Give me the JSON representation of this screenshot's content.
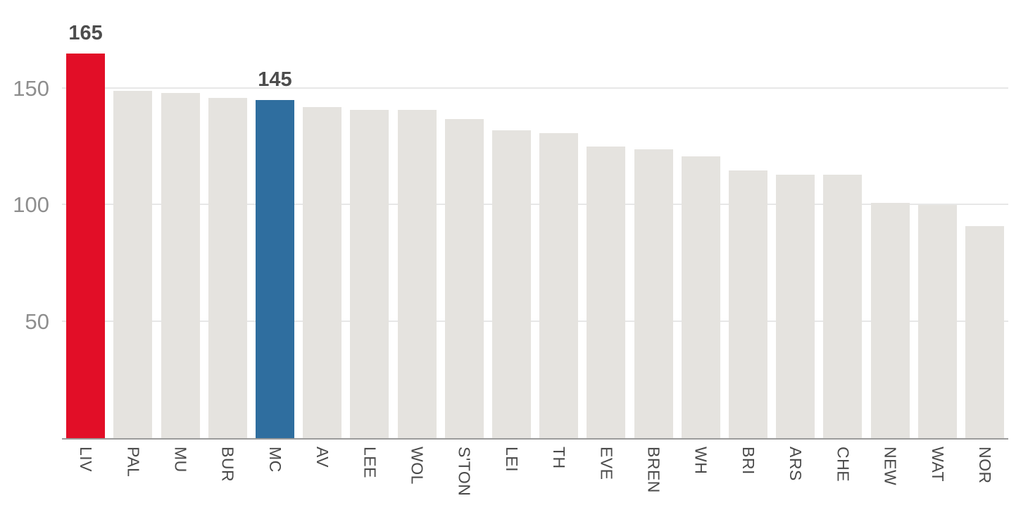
{
  "chart_data": {
    "type": "bar",
    "title": "",
    "xlabel": "",
    "ylabel": "",
    "categories": [
      "LIV",
      "PAL",
      "MU",
      "BUR",
      "MC",
      "AV",
      "LEE",
      "WOL",
      "S'TON",
      "LEI",
      "TH",
      "EVE",
      "BREN",
      "WH",
      "BRI",
      "ARS",
      "CHE",
      "NEW",
      "WAT",
      "NOR"
    ],
    "values": [
      165,
      149,
      148,
      146,
      145,
      142,
      141,
      141,
      137,
      132,
      131,
      125,
      124,
      121,
      115,
      113,
      113,
      101,
      100,
      91
    ],
    "highlights": [
      {
        "index": 0,
        "category": "LIV",
        "color": "#e20e27",
        "label": "165"
      },
      {
        "index": 4,
        "category": "MC",
        "color": "#2f6e9f",
        "label": "145"
      }
    ],
    "default_bar_color": "#e5e3df",
    "yticks": [
      50,
      100,
      150
    ],
    "ylim": [
      0,
      188
    ],
    "grid": true,
    "legend": "none",
    "colors": {
      "grid": "#e7e7e7",
      "axis": "#9b9b9b",
      "tick_label": "#8e8e8e",
      "value_label": "#4d4d4d",
      "x_label": "#4a4a4a"
    }
  }
}
